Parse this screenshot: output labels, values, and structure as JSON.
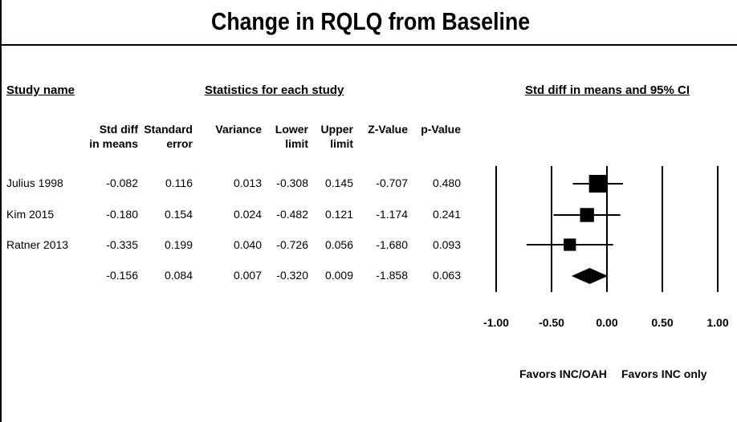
{
  "title": "Change in RQLQ from Baseline",
  "headers": {
    "study": "Study name",
    "stats": "Statistics for each study",
    "ci": "Std diff in means and 95% CI"
  },
  "columns": [
    {
      "l1": "Std diff",
      "l2": "in means"
    },
    {
      "l1": "Standard",
      "l2": "error"
    },
    {
      "l1": "",
      "l2": "Variance"
    },
    {
      "l1": "Lower",
      "l2": "limit"
    },
    {
      "l1": "Upper",
      "l2": "limit"
    },
    {
      "l1": "",
      "l2": "Z-Value"
    },
    {
      "l1": "",
      "l2": "p-Value"
    }
  ],
  "rows": [
    {
      "name": "Julius 1998",
      "values": [
        "-0.082",
        "0.116",
        "0.013",
        "-0.308",
        "0.145",
        "-0.707",
        "0.480"
      ]
    },
    {
      "name": "Kim 2015",
      "values": [
        "-0.180",
        "0.154",
        "0.024",
        "-0.482",
        "0.121",
        "-1.174",
        "0.241"
      ]
    },
    {
      "name": "Ratner 2013",
      "values": [
        "-0.335",
        "0.199",
        "0.040",
        "-0.726",
        "0.056",
        "-1.680",
        "0.093"
      ]
    },
    {
      "name": "",
      "values": [
        "-0.156",
        "0.084",
        "0.007",
        "-0.320",
        "0.009",
        "-1.858",
        "0.063"
      ]
    }
  ],
  "favors": {
    "left": "Favors INC/OAH",
    "right": "Favors INC only"
  },
  "chart_data": {
    "type": "scatter",
    "title": "Change in RQLQ from Baseline",
    "xlabel": "Std diff in means and 95% CI",
    "xlim": [
      -1.0,
      1.0
    ],
    "ticks": [
      "-1.00",
      "-0.50",
      "0.00",
      "0.50",
      "1.00"
    ],
    "tick_values": [
      -1.0,
      -0.5,
      0.0,
      0.5,
      1.0
    ],
    "series": [
      {
        "study": "Julius 1998",
        "estimate": -0.082,
        "lower": -0.308,
        "upper": 0.145,
        "weight": 0.013
      },
      {
        "study": "Kim 2015",
        "estimate": -0.18,
        "lower": -0.482,
        "upper": 0.121,
        "weight": 0.024
      },
      {
        "study": "Ratner 2013",
        "estimate": -0.335,
        "lower": -0.726,
        "upper": 0.056,
        "weight": 0.04
      }
    ],
    "summary": {
      "estimate": -0.156,
      "lower": -0.32,
      "upper": 0.009
    }
  }
}
